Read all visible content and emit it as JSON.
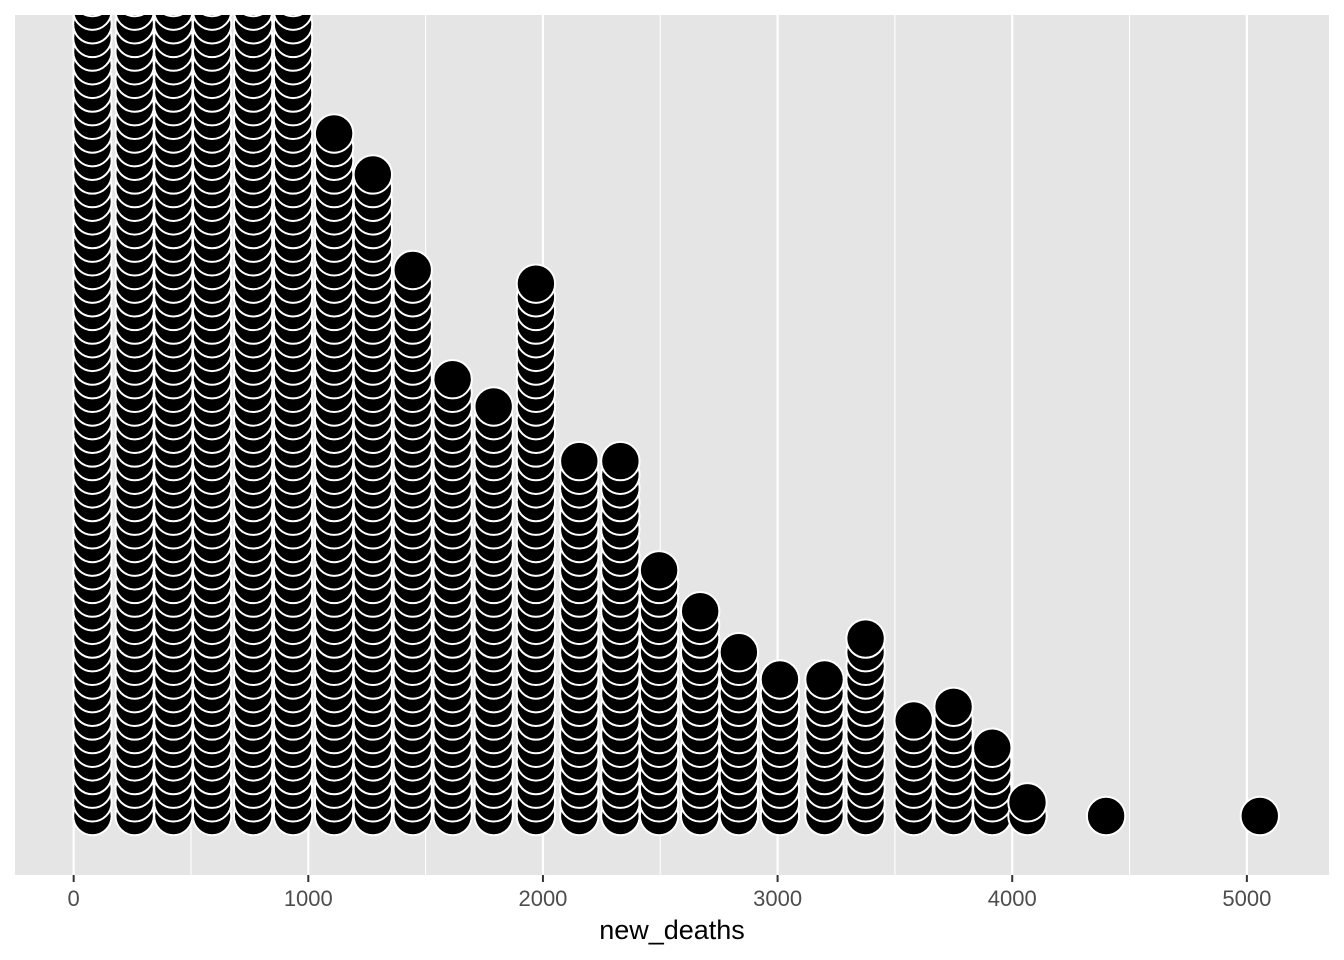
{
  "chart_data": {
    "type": "scatter",
    "subtype": "dotplot",
    "xlabel": "new_deaths",
    "ylabel": "",
    "xlim": [
      -250,
      5350
    ],
    "x_ticks": [
      0,
      1000,
      2000,
      3000,
      4000,
      5000
    ],
    "x_tick_labels": [
      "0",
      "1000",
      "2000",
      "3000",
      "4000",
      "5000"
    ],
    "x_minor_ticks": [
      500,
      1500,
      2500,
      3500,
      4500
    ],
    "grid": true,
    "dot_color": "#000000",
    "dot_outline": "#ffffff",
    "background": "#e5e5e5",
    "gridline_color": "#ffffff",
    "note": "",
    "bins": [
      {
        "x": 80,
        "count": 61,
        "clipped": true
      },
      {
        "x": 260,
        "count": 61,
        "clipped": true
      },
      {
        "x": 425,
        "count": 61,
        "clipped": true
      },
      {
        "x": 590,
        "count": 61,
        "clipped": true
      },
      {
        "x": 765,
        "count": 61,
        "clipped": true
      },
      {
        "x": 935,
        "count": 61,
        "clipped": true
      },
      {
        "x": 1110,
        "count": 51
      },
      {
        "x": 1275,
        "count": 48
      },
      {
        "x": 1445,
        "count": 41
      },
      {
        "x": 1615,
        "count": 33
      },
      {
        "x": 1790,
        "count": 31
      },
      {
        "x": 1970,
        "count": 40
      },
      {
        "x": 2155,
        "count": 27
      },
      {
        "x": 2330,
        "count": 27
      },
      {
        "x": 2495,
        "count": 19
      },
      {
        "x": 2670,
        "count": 16
      },
      {
        "x": 2835,
        "count": 13
      },
      {
        "x": 3010,
        "count": 11
      },
      {
        "x": 3200,
        "count": 11
      },
      {
        "x": 3375,
        "count": 14
      },
      {
        "x": 3580,
        "count": 8
      },
      {
        "x": 3750,
        "count": 9
      },
      {
        "x": 3915,
        "count": 6
      },
      {
        "x": 4065,
        "count": 2
      },
      {
        "x": 4400,
        "count": 1
      },
      {
        "x": 5055,
        "count": 1
      }
    ]
  }
}
